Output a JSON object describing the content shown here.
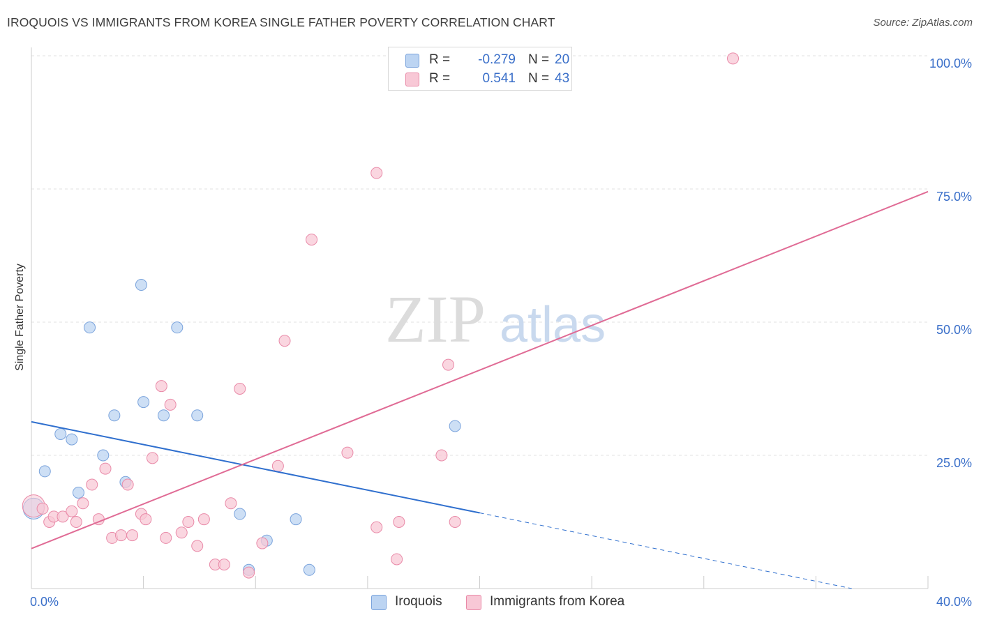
{
  "title": "IROQUOIS VS IMMIGRANTS FROM KOREA SINGLE FATHER POVERTY CORRELATION CHART",
  "source": "Source: ZipAtlas.com",
  "watermark": {
    "zip": "ZIP",
    "atlas": "atlas"
  },
  "legend": {
    "rows": [
      {
        "r_label": "R =",
        "r_value": "-0.279",
        "n_label": "N =",
        "n_value": "20"
      },
      {
        "r_label": "R =",
        "r_value": "0.541",
        "n_label": "N =",
        "n_value": "43"
      }
    ]
  },
  "bottom_legend": {
    "series1": "Iroquois",
    "series2": "Immigrants from Korea"
  },
  "colors": {
    "blue_fill": "#bcd4f2",
    "blue_stroke": "#7aa3dc",
    "blue_line": "#2f6fce",
    "pink_fill": "#f8c8d6",
    "pink_stroke": "#e98aa8",
    "pink_line": "#e06b95",
    "tick": "#3a6fc9",
    "grid": "#e2e2e2",
    "axis": "#cccccc"
  },
  "chart_data": {
    "type": "scatter",
    "title": "IROQUOIS VS IMMIGRANTS FROM KOREA SINGLE FATHER POVERTY CORRELATION CHART",
    "xlabel": "",
    "ylabel": "Single Father Poverty",
    "xlim": [
      0,
      40
    ],
    "ylim": [
      0,
      100
    ],
    "x_tick_labels": [
      "0.0%",
      "40.0%"
    ],
    "y_tick_labels": [
      "100.0%",
      "75.0%",
      "50.0%",
      "25.0%"
    ],
    "y_ticks": [
      100,
      75,
      50,
      25
    ],
    "series": [
      {
        "name": "Iroquois",
        "r": -0.279,
        "n": 20,
        "points": [
          [
            0.1,
            15.0
          ],
          [
            0.6,
            22.0
          ],
          [
            1.3,
            29.0
          ],
          [
            1.8,
            28.0
          ],
          [
            2.1,
            18.0
          ],
          [
            2.6,
            49.0
          ],
          [
            3.2,
            25.0
          ],
          [
            3.7,
            32.5
          ],
          [
            4.2,
            20.0
          ],
          [
            4.9,
            57.0
          ],
          [
            5.0,
            35.0
          ],
          [
            5.9,
            32.5
          ],
          [
            6.5,
            49.0
          ],
          [
            7.4,
            32.5
          ],
          [
            9.3,
            14.0
          ],
          [
            9.7,
            3.5
          ],
          [
            10.5,
            9.0
          ],
          [
            11.8,
            13.0
          ],
          [
            12.4,
            3.5
          ],
          [
            18.9,
            30.5
          ]
        ],
        "trend": {
          "x0": 0,
          "y0": 31.3,
          "x1": 20.0,
          "y1": 14.2,
          "dash_to_x": 36.6,
          "dash_to_y": 0
        }
      },
      {
        "name": "Immigrants from Korea",
        "r": 0.541,
        "n": 43,
        "points": [
          [
            0.1,
            15.5
          ],
          [
            0.5,
            15.0
          ],
          [
            0.8,
            12.5
          ],
          [
            1.0,
            13.5
          ],
          [
            1.4,
            13.5
          ],
          [
            1.8,
            14.5
          ],
          [
            2.0,
            12.5
          ],
          [
            2.3,
            16.0
          ],
          [
            2.7,
            19.5
          ],
          [
            3.0,
            13.0
          ],
          [
            3.3,
            22.5
          ],
          [
            3.6,
            9.5
          ],
          [
            4.0,
            10.0
          ],
          [
            4.3,
            19.5
          ],
          [
            4.5,
            10.0
          ],
          [
            4.9,
            14.0
          ],
          [
            5.1,
            13.0
          ],
          [
            5.4,
            24.5
          ],
          [
            5.8,
            38.0
          ],
          [
            6.0,
            9.5
          ],
          [
            6.2,
            34.5
          ],
          [
            6.7,
            10.5
          ],
          [
            7.0,
            12.5
          ],
          [
            7.4,
            8.0
          ],
          [
            7.7,
            13.0
          ],
          [
            8.2,
            4.5
          ],
          [
            8.6,
            4.5
          ],
          [
            8.9,
            16.0
          ],
          [
            9.3,
            37.5
          ],
          [
            9.7,
            3.0
          ],
          [
            10.3,
            8.5
          ],
          [
            11.0,
            23.0
          ],
          [
            11.3,
            46.5
          ],
          [
            12.5,
            65.5
          ],
          [
            14.1,
            25.5
          ],
          [
            15.4,
            78.0
          ],
          [
            15.4,
            11.5
          ],
          [
            16.3,
            5.5
          ],
          [
            16.4,
            12.5
          ],
          [
            18.3,
            25.0
          ],
          [
            18.6,
            42.0
          ],
          [
            18.9,
            12.5
          ],
          [
            31.3,
            99.5
          ]
        ],
        "trend": {
          "x0": 0,
          "y0": 7.5,
          "x1": 40,
          "y1": 74.5
        }
      }
    ]
  }
}
